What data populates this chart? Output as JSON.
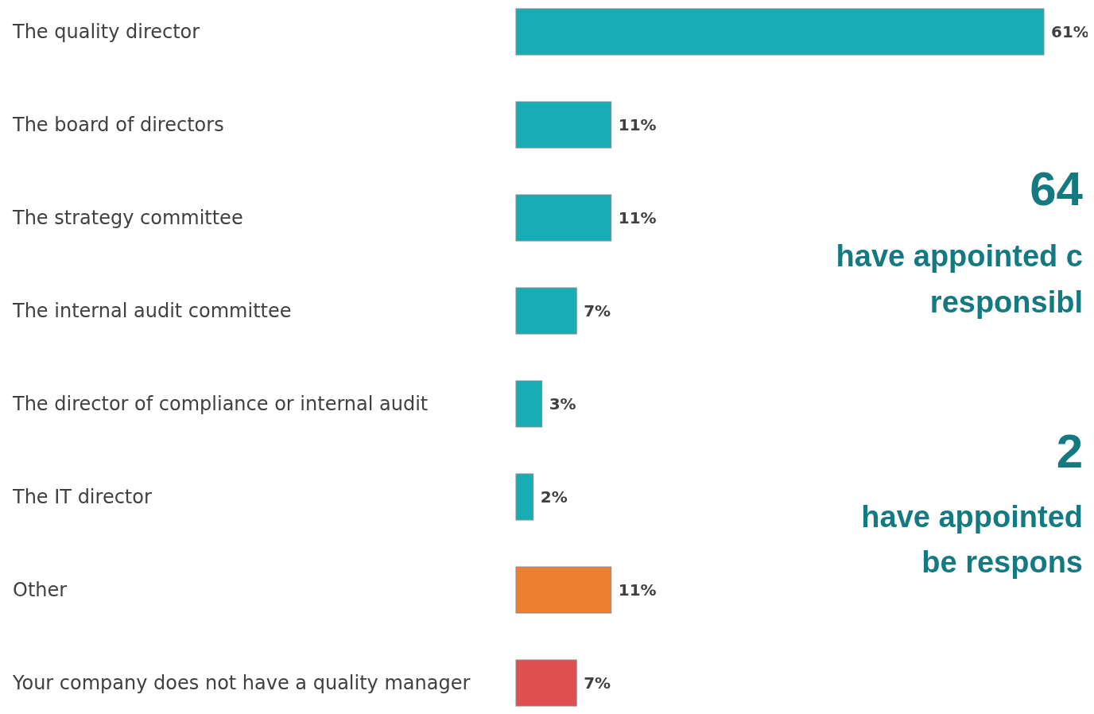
{
  "chart_data": {
    "type": "bar",
    "orientation": "horizontal",
    "categories": [
      "The quality director",
      "The board of directors",
      "The strategy committee",
      "The internal audit committee",
      "The director of compliance or internal audit",
      "The IT director",
      "Other",
      "Your company does not have a quality manager"
    ],
    "values": [
      61,
      11,
      11,
      7,
      3,
      2,
      11,
      7
    ],
    "colors": [
      "#16adb5",
      "#16adb5",
      "#16adb5",
      "#16adb5",
      "#16adb5",
      "#16adb5",
      "#ed7d31",
      "#e04f50"
    ],
    "value_labels": [
      "61%",
      "11%",
      "11%",
      "7%",
      "3%",
      "2%",
      "11%",
      "7%"
    ],
    "annotations": [
      "64",
      "have appointed c",
      "responsibl",
      "2",
      "have appointed",
      "be respons"
    ]
  }
}
